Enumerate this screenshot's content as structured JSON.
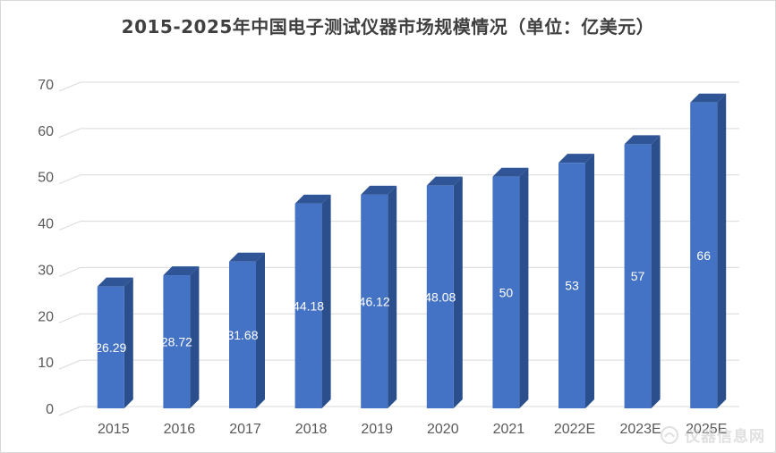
{
  "chart_data": {
    "type": "bar",
    "title": "2015-2025年中国电子测试仪器市场规模情况（单位：亿美元）",
    "categories": [
      "2015",
      "2016",
      "2017",
      "2018",
      "2019",
      "2020",
      "2021",
      "2022E",
      "2023E",
      "2025E"
    ],
    "values": [
      26.29,
      28.72,
      31.68,
      44.18,
      46.12,
      48.08,
      50,
      53,
      57,
      66
    ],
    "data_labels": [
      "26.29",
      "28.72",
      "31.68",
      "44.18",
      "46.12",
      "48.08",
      "50",
      "53",
      "57",
      "66"
    ],
    "yticks": [
      "0",
      "10",
      "20",
      "30",
      "40",
      "50",
      "60",
      "70"
    ],
    "ylim": [
      0,
      70
    ],
    "xlabel": "",
    "ylabel": "",
    "grid": true,
    "legend": "none",
    "bar_style": "3d",
    "colors": {
      "bar_front": "#4472c4",
      "bar_top": "#2f5597",
      "bar_side": "#2b4e8c",
      "grid": "#d9d9d9",
      "text": "#595959",
      "title": "#404040"
    }
  },
  "watermark": {
    "text": "仪器信息网",
    "icon": "instrument-logo-icon"
  }
}
